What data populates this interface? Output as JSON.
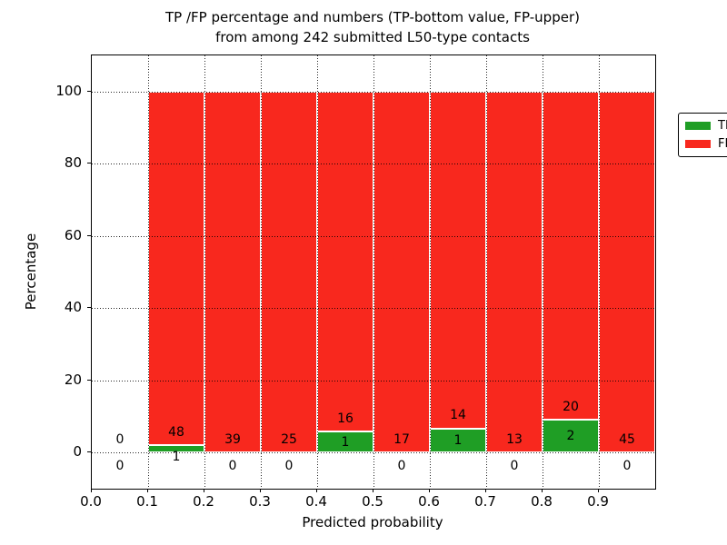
{
  "chart_data": {
    "type": "bar",
    "stacked": true,
    "percent_normalized": true,
    "title_lines": [
      "TP /FP percentage and numbers (TP-bottom value, FP-upper)",
      "from among 242 submitted L50-type contacts"
    ],
    "xlabel": "Predicted probability",
    "ylabel": "Percentage",
    "total_contacts": 242,
    "bin_edges": [
      0.0,
      0.1,
      0.2,
      0.3,
      0.4,
      0.5,
      0.6,
      0.7,
      0.8,
      0.9,
      1.0
    ],
    "categories": [
      "0.0-0.1",
      "0.1-0.2",
      "0.2-0.3",
      "0.3-0.4",
      "0.4-0.5",
      "0.5-0.6",
      "0.6-0.7",
      "0.7-0.8",
      "0.8-0.9",
      "0.9-1.0"
    ],
    "series": [
      {
        "name": "TP",
        "color": "#1f9e25",
        "counts": [
          0,
          1,
          0,
          0,
          1,
          0,
          1,
          0,
          2,
          0
        ]
      },
      {
        "name": "FP",
        "color": "#f8281e",
        "counts": [
          0,
          48,
          39,
          25,
          16,
          17,
          14,
          13,
          20,
          45
        ]
      }
    ],
    "xticks": [
      "0.0",
      "0.1",
      "0.2",
      "0.3",
      "0.4",
      "0.5",
      "0.6",
      "0.7",
      "0.8",
      "0.9"
    ],
    "yticks": [
      0,
      20,
      40,
      60,
      80,
      100
    ],
    "xlim": [
      0.0,
      1.0
    ],
    "ylim": [
      -10,
      110
    ],
    "grid": "dotted",
    "legend": {
      "position": "upper right"
    }
  }
}
